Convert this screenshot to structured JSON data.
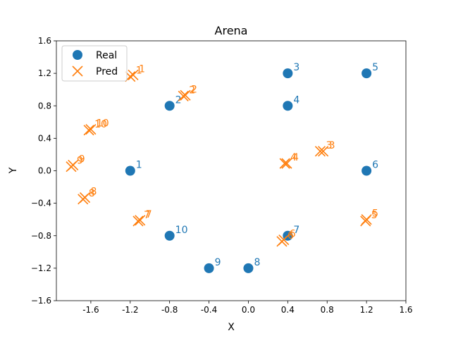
{
  "chart_data": {
    "type": "scatter",
    "title": "Arena",
    "xlabel": "X",
    "ylabel": "Y",
    "xlim": [
      -1.95,
      1.6
    ],
    "ylim": [
      -1.6,
      1.6
    ],
    "xticks": [
      "-1.6",
      "-1.2",
      "-0.8",
      "-0.4",
      "0.0",
      "0.4",
      "0.8",
      "1.2",
      "1.6"
    ],
    "xtick_values": [
      -1.6,
      -1.2,
      -0.8,
      -0.4,
      0.0,
      0.4,
      0.8,
      1.2,
      1.6
    ],
    "yticks": [
      "1.6",
      "1.2",
      "0.8",
      "0.4",
      "0.0",
      "−0.4",
      "−0.8",
      "−1.2",
      "−1.6"
    ],
    "ytick_values": [
      1.6,
      1.2,
      0.8,
      0.4,
      0.0,
      -0.4,
      -0.8,
      -1.2,
      -1.6
    ],
    "grid": false,
    "legend_position": "top-left",
    "series": [
      {
        "name": "Real",
        "marker": "circle",
        "color": "#1f77b4",
        "points": [
          {
            "label": "1",
            "x": -1.2,
            "y": 0.0
          },
          {
            "label": "2",
            "x": -0.8,
            "y": 0.8
          },
          {
            "label": "3",
            "x": 0.4,
            "y": 1.2
          },
          {
            "label": "4",
            "x": 0.4,
            "y": 0.8
          },
          {
            "label": "5",
            "x": 1.2,
            "y": 1.2
          },
          {
            "label": "6",
            "x": 1.2,
            "y": 0.0
          },
          {
            "label": "7",
            "x": 0.4,
            "y": -0.8
          },
          {
            "label": "8",
            "x": 0.0,
            "y": -1.2
          },
          {
            "label": "9",
            "x": -0.4,
            "y": -1.2
          },
          {
            "label": "10",
            "x": -0.8,
            "y": -0.8
          }
        ]
      },
      {
        "name": "Pred",
        "marker": "x",
        "color": "#ff7f0e",
        "points": [
          {
            "label": "1",
            "x": -1.2,
            "y": 1.16
          },
          {
            "label": "1",
            "x": -1.17,
            "y": 1.18
          },
          {
            "label": "2",
            "x": -0.66,
            "y": 0.92
          },
          {
            "label": "2",
            "x": -0.64,
            "y": 0.93
          },
          {
            "label": "3",
            "x": 0.73,
            "y": 0.24
          },
          {
            "label": "3",
            "x": 0.76,
            "y": 0.24
          },
          {
            "label": "4",
            "x": 0.37,
            "y": 0.09
          },
          {
            "label": "4",
            "x": 0.39,
            "y": 0.09
          },
          {
            "label": "5",
            "x": 1.19,
            "y": -0.62
          },
          {
            "label": "5",
            "x": 1.2,
            "y": -0.6
          },
          {
            "label": "6",
            "x": 0.34,
            "y": -0.87
          },
          {
            "label": "6",
            "x": 0.36,
            "y": -0.85
          },
          {
            "label": "7",
            "x": -1.12,
            "y": -0.62
          },
          {
            "label": "7",
            "x": -1.1,
            "y": -0.61
          },
          {
            "label": "8",
            "x": -1.68,
            "y": -0.35
          },
          {
            "label": "8",
            "x": -1.66,
            "y": -0.33
          },
          {
            "label": "9",
            "x": -1.8,
            "y": 0.05
          },
          {
            "label": "9",
            "x": -1.78,
            "y": 0.07
          },
          {
            "label": "10",
            "x": -1.62,
            "y": 0.5
          },
          {
            "label": "10",
            "x": -1.6,
            "y": 0.51
          }
        ]
      }
    ]
  }
}
